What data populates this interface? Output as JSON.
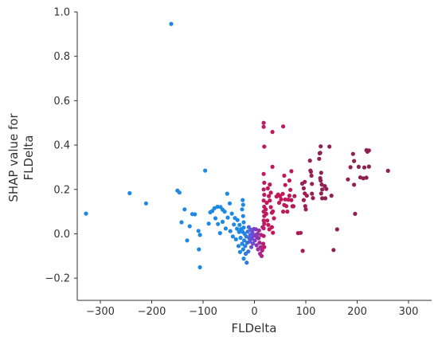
{
  "chart_data": {
    "type": "scatter",
    "title": "",
    "xlabel": "FLDelta",
    "ylabel_lines": [
      "SHAP value for",
      "FLDelta"
    ],
    "xlim": [
      -345,
      345
    ],
    "ylim": [
      -0.3,
      1.0
    ],
    "xticks": [
      -300,
      -200,
      -100,
      0,
      100,
      200,
      300
    ],
    "xtick_labels": [
      "−300",
      "−200",
      "−100",
      "0",
      "100",
      "200",
      "300"
    ],
    "yticks": [
      -0.2,
      0.0,
      0.2,
      0.4,
      0.6,
      0.8,
      1.0
    ],
    "ytick_labels": [
      "−0.2",
      "0.0",
      "0.2",
      "0.4",
      "0.6",
      "0.8",
      "1.0"
    ],
    "grid": false,
    "colormap": {
      "low": "#1e88e5",
      "mid": "#7b3fd0",
      "high": "#c2185b",
      "far": "#8e2150"
    },
    "points": [
      [
        -162,
        0.946
      ],
      [
        -328,
        0.091
      ],
      [
        -243,
        0.183
      ],
      [
        -211,
        0.137
      ],
      [
        -150,
        0.195
      ],
      [
        -146,
        0.186
      ],
      [
        -136,
        0.11
      ],
      [
        -126,
        0.034
      ],
      [
        -142,
        0.052
      ],
      [
        -131,
        -0.03
      ],
      [
        -121,
        0.089
      ],
      [
        -116,
        0.088
      ],
      [
        -106,
        -0.005
      ],
      [
        -109,
        0.013
      ],
      [
        -96,
        0.285
      ],
      [
        -108,
        -0.07
      ],
      [
        -106,
        -0.151
      ],
      [
        -89,
        0.046
      ],
      [
        -86,
        0.097
      ],
      [
        -82,
        0.103
      ],
      [
        -78,
        0.115
      ],
      [
        -72,
        0.122
      ],
      [
        -66,
        0.121
      ],
      [
        -62,
        0.109
      ],
      [
        -58,
        0.1
      ],
      [
        -53,
        0.181
      ],
      [
        -48,
        0.137
      ],
      [
        -76,
        0.07
      ],
      [
        -71,
        0.044
      ],
      [
        -67,
        0.003
      ],
      [
        -62,
        0.054
      ],
      [
        -56,
        0.024
      ],
      [
        -52,
        0.073
      ],
      [
        -47,
        0.012
      ],
      [
        -44,
        0.091
      ],
      [
        -42,
        -0.012
      ],
      [
        -40,
        0.042
      ],
      [
        -38,
        0.071
      ],
      [
        -36,
        -0.025
      ],
      [
        -34,
        0.023
      ],
      [
        -33,
        0.062
      ],
      [
        -31,
        -0.055
      ],
      [
        -30,
        0.008
      ],
      [
        -29,
        0.04
      ],
      [
        -28,
        -0.082
      ],
      [
        -27,
        -0.018
      ],
      [
        -26,
        0.021
      ],
      [
        -24,
        -0.045
      ],
      [
        -23,
        0.009
      ],
      [
        -22,
        -0.07
      ],
      [
        -21,
        -0.112
      ],
      [
        -20,
        -0.03
      ],
      [
        -19,
        0.0
      ],
      [
        -18,
        -0.055
      ],
      [
        -17,
        -0.09
      ],
      [
        -16,
        -0.012
      ],
      [
        -15,
        -0.13
      ],
      [
        -14,
        -0.04
      ],
      [
        -13,
        0.01
      ],
      [
        -12,
        -0.08
      ],
      [
        -11,
        0.03
      ],
      [
        -10,
        -0.02
      ],
      [
        -24,
        0.11
      ],
      [
        -23,
        0.152
      ],
      [
        -22,
        0.131
      ],
      [
        -22,
        0.08
      ],
      [
        -21,
        0.052
      ],
      [
        -21,
        0.028
      ],
      [
        -9,
        -0.035
      ],
      [
        -8,
        -0.005
      ],
      [
        -7,
        0.018
      ],
      [
        -6,
        -0.06
      ],
      [
        -5,
        -0.022
      ],
      [
        -4,
        0.007
      ],
      [
        -3,
        -0.044
      ],
      [
        -2,
        -0.01
      ],
      [
        -1,
        0.022
      ],
      [
        1,
        -0.03
      ],
      [
        2,
        -0.005
      ],
      [
        3,
        0.02
      ],
      [
        4,
        -0.052
      ],
      [
        5,
        -0.015
      ],
      [
        6,
        0.0
      ],
      [
        7,
        -0.07
      ],
      [
        8,
        -0.02
      ],
      [
        9,
        0.015
      ],
      [
        10,
        -0.04
      ],
      [
        11,
        -0.09
      ],
      [
        12,
        -0.06
      ],
      [
        13,
        -0.005
      ],
      [
        14,
        -0.1
      ],
      [
        15,
        -0.075
      ],
      [
        16,
        0.03
      ],
      [
        17,
        -0.045
      ],
      [
        18,
        -0.01
      ],
      [
        19,
        -0.06
      ],
      [
        18,
        0.5
      ],
      [
        18,
        0.482
      ],
      [
        19,
        0.393
      ],
      [
        18,
        0.27
      ],
      [
        19,
        0.23
      ],
      [
        18,
        0.2
      ],
      [
        19,
        0.176
      ],
      [
        18,
        0.15
      ],
      [
        19,
        0.122
      ],
      [
        18,
        0.1
      ],
      [
        19,
        0.08
      ],
      [
        18,
        0.06
      ],
      [
        19,
        0.045
      ],
      [
        18,
        0.025
      ],
      [
        22,
        0.11
      ],
      [
        23,
        0.09
      ],
      [
        25,
        0.06
      ],
      [
        27,
        0.04
      ],
      [
        29,
        0.02
      ],
      [
        24,
        0.14
      ],
      [
        28,
        0.17
      ],
      [
        30,
        0.15
      ],
      [
        32,
        0.12
      ],
      [
        34,
        0.095
      ],
      [
        26,
        0.205
      ],
      [
        30,
        0.222
      ],
      [
        32,
        0.185
      ],
      [
        36,
        0.101
      ],
      [
        38,
        0.07
      ],
      [
        35,
        0.459
      ],
      [
        35,
        0.302
      ],
      [
        36,
        0.005
      ],
      [
        34,
        0.03
      ],
      [
        43,
        0.168
      ],
      [
        46,
        0.177
      ],
      [
        50,
        0.17
      ],
      [
        52,
        0.155
      ],
      [
        48,
        0.14
      ],
      [
        55,
        0.18
      ],
      [
        58,
        0.13
      ],
      [
        56,
        0.1
      ],
      [
        60,
        0.155
      ],
      [
        62,
        0.125
      ],
      [
        56,
        0.484
      ],
      [
        58,
        0.262
      ],
      [
        60,
        0.22
      ],
      [
        64,
        0.1
      ],
      [
        66,
        0.154
      ],
      [
        68,
        0.172
      ],
      [
        70,
        0.198
      ],
      [
        72,
        0.152
      ],
      [
        74,
        0.124
      ],
      [
        68,
        0.24
      ],
      [
        72,
        0.282
      ],
      [
        76,
        0.124
      ],
      [
        78,
        0.17
      ],
      [
        85,
        0.003
      ],
      [
        90,
        0.004
      ],
      [
        94,
        -0.077
      ],
      [
        93,
        0.226
      ],
      [
        96,
        0.152
      ],
      [
        96,
        0.205
      ],
      [
        98,
        0.182
      ],
      [
        99,
        0.125
      ],
      [
        100,
        0.11
      ],
      [
        98,
        0.234
      ],
      [
        102,
        0.172
      ],
      [
        108,
        0.33
      ],
      [
        109,
        0.285
      ],
      [
        110,
        0.28
      ],
      [
        112,
        0.181
      ],
      [
        114,
        0.161
      ],
      [
        112,
        0.225
      ],
      [
        111,
        0.262
      ],
      [
        126,
        0.338
      ],
      [
        127,
        0.363
      ],
      [
        128,
        0.365
      ],
      [
        130,
        0.275
      ],
      [
        128,
        0.251
      ],
      [
        129,
        0.24
      ],
      [
        131,
        0.222
      ],
      [
        132,
        0.2
      ],
      [
        130,
        0.182
      ],
      [
        132,
        0.16
      ],
      [
        129,
        0.394
      ],
      [
        137,
        0.215
      ],
      [
        138,
        0.16
      ],
      [
        140,
        0.202
      ],
      [
        146,
        0.393
      ],
      [
        150,
        0.172
      ],
      [
        154,
        -0.073
      ],
      [
        161,
        0.02
      ],
      [
        182,
        0.245
      ],
      [
        187,
        0.3
      ],
      [
        192,
        0.36
      ],
      [
        194,
        0.328
      ],
      [
        194,
        0.221
      ],
      [
        196,
        0.09
      ],
      [
        203,
        0.302
      ],
      [
        206,
        0.254
      ],
      [
        212,
        0.25
      ],
      [
        214,
        0.299
      ],
      [
        218,
        0.253
      ],
      [
        218,
        0.377
      ],
      [
        220,
        0.37
      ],
      [
        223,
        0.303
      ],
      [
        223,
        0.376
      ],
      [
        260,
        0.284
      ]
    ]
  }
}
